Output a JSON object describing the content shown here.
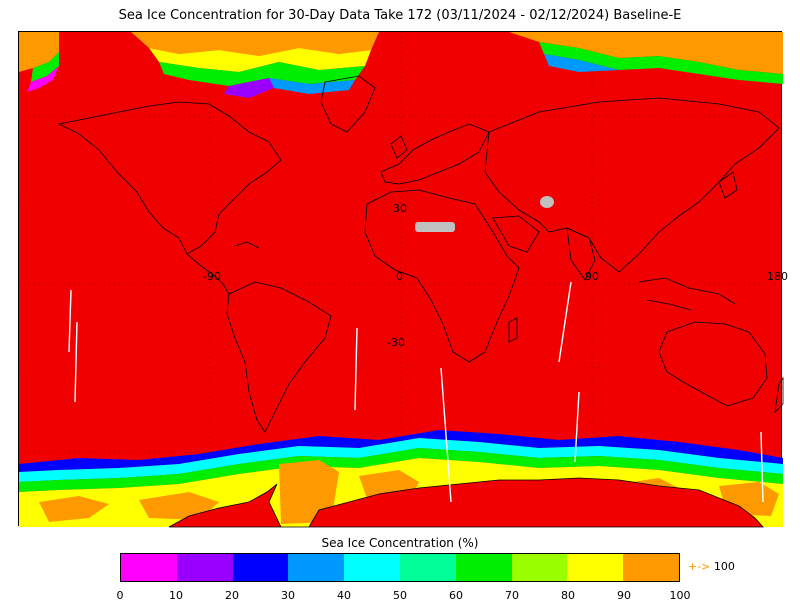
{
  "title": "Sea Ice Concentration for 30-Day Data Take 172 (03/11/2024 - 02/12/2024) Baseline-E",
  "map": {
    "background_color": "#f00000",
    "land_mask_color": "#c0c0c0",
    "grid_labels": {
      "lat_30": "30",
      "lat_0": "0",
      "lat_m30": "-30",
      "lon_m90": "-90",
      "lon_90": "90",
      "lon_180": "180"
    }
  },
  "colorbar": {
    "title": "Sea Ice Concentration (%)",
    "colors": [
      "#ff00ff",
      "#9900ff",
      "#0000ff",
      "#0099ff",
      "#00ffff",
      "#00ff99",
      "#00ee00",
      "#99ff00",
      "#ffff00",
      "#ff9900"
    ],
    "ticks": [
      "0",
      "10",
      "20",
      "30",
      "40",
      "50",
      "60",
      "70",
      "80",
      "90",
      "100"
    ],
    "overflow_arrow": "+->",
    "overflow_label": "100"
  }
}
